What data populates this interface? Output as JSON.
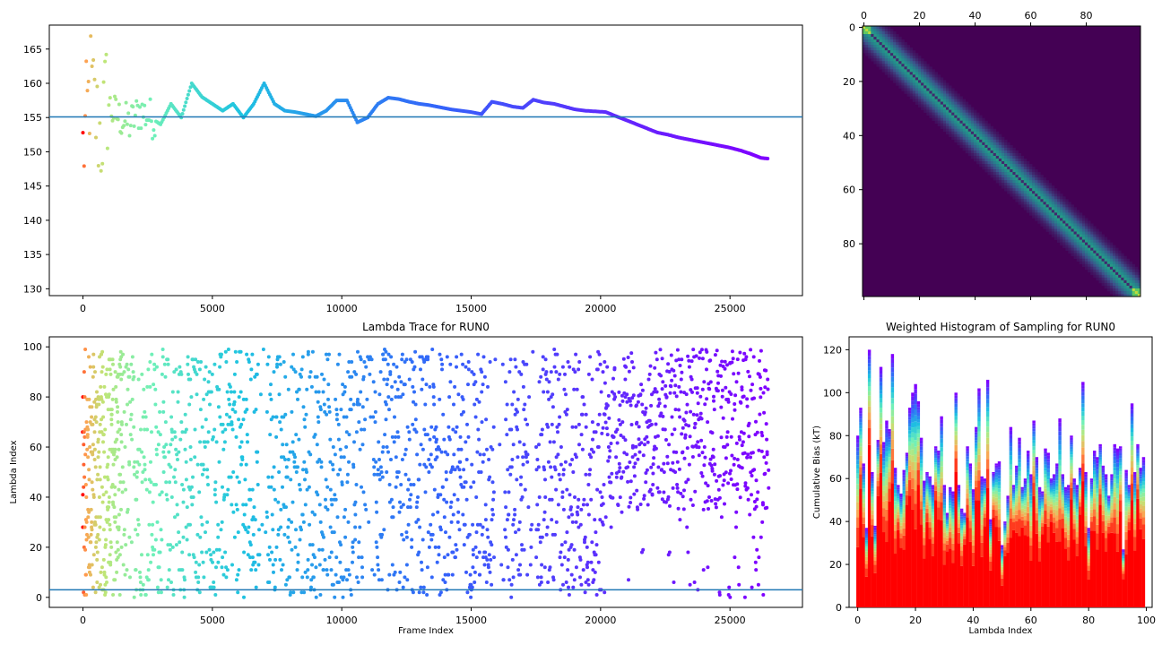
{
  "chart_data": [
    {
      "id": "top-left",
      "type": "scatter",
      "title": "",
      "xlabel": "",
      "ylabel": "",
      "xlim": [
        -1300,
        27800
      ],
      "ylim": [
        129,
        168.5
      ],
      "xticks": [
        0,
        5000,
        10000,
        15000,
        20000,
        25000
      ],
      "yticks": [
        130,
        135,
        140,
        145,
        150,
        155,
        160,
        165
      ],
      "hline": 155.1,
      "hline_color": "#1f77b4",
      "colormap": "rainbow",
      "series": [
        {
          "x": [
            0,
            300,
            500,
            700,
            900,
            1100,
            1400,
            1800,
            2200,
            2600,
            3000,
            3400,
            3800,
            4200,
            4600,
            5000,
            5400,
            5800,
            6200,
            6600,
            7000,
            7400,
            7800,
            8200,
            8600,
            9000,
            9400,
            9800,
            10200,
            10600,
            11000,
            11400,
            11800,
            12200,
            12600,
            13000,
            13400,
            13800,
            14200,
            14600,
            15000,
            15400,
            15800,
            16200,
            16600,
            17000,
            17400,
            17800,
            18200,
            18600,
            19000,
            19400,
            19800,
            20200,
            20600,
            21000,
            21400,
            21800,
            22200,
            22600,
            23000,
            23400,
            23800,
            24200,
            24600,
            25000,
            25400,
            25800,
            26200,
            26500
          ],
          "y": [
            150,
            160,
            155,
            152,
            158,
            156,
            155,
            154,
            156,
            155,
            154,
            157,
            155,
            160,
            158,
            157,
            156,
            157,
            155,
            157,
            160,
            157,
            156,
            155.8,
            155.5,
            155.2,
            156,
            157.5,
            157.5,
            154.3,
            155,
            157,
            157.9,
            157.7,
            157.3,
            157,
            156.8,
            156.5,
            156.2,
            156,
            155.8,
            155.5,
            157.3,
            157,
            156.6,
            156.4,
            157.6,
            157.2,
            157,
            156.6,
            156.2,
            156,
            155.9,
            155.8,
            155.2,
            154.6,
            154,
            153.4,
            152.8,
            152.5,
            152.1,
            151.8,
            151.5,
            151.2,
            150.9,
            150.6,
            150.2,
            149.7,
            149.1,
            149
          ]
        }
      ]
    },
    {
      "id": "top-right",
      "type": "heatmap",
      "title": "",
      "xlabel": "",
      "ylabel": "",
      "size": 100,
      "xticks": [
        0,
        20,
        40,
        60,
        80
      ],
      "yticks": [
        0,
        20,
        40,
        60,
        80
      ],
      "xlim": [
        -0.5,
        99.5
      ],
      "ylim": [
        99.5,
        -0.5
      ],
      "colormap": "viridis",
      "band_width": 4,
      "diagonal": "dark"
    },
    {
      "id": "bottom-left",
      "type": "scatter",
      "title": "Lambda Trace for RUN0",
      "xlabel": "Frame Index",
      "ylabel": "Lambda Index",
      "xlim": [
        -1300,
        27800
      ],
      "ylim": [
        -4,
        104
      ],
      "xticks": [
        0,
        5000,
        10000,
        15000,
        20000,
        25000
      ],
      "yticks": [
        0,
        20,
        40,
        60,
        80,
        100
      ],
      "hline": 3,
      "hline_color": "#1f77b4",
      "colormap": "rainbow",
      "x_range": [
        0,
        26500
      ],
      "y_range": [
        0,
        99
      ]
    },
    {
      "id": "bottom-right",
      "type": "bar",
      "title": "Weighted Histogram of Sampling for RUN0",
      "xlabel": "Lambda Index",
      "ylabel": "Cumulative Bias (kT)",
      "xlim": [
        -3,
        102
      ],
      "ylim": [
        0,
        126
      ],
      "xticks": [
        0,
        20,
        40,
        60,
        80,
        100
      ],
      "yticks": [
        0,
        20,
        40,
        60,
        80,
        100,
        120
      ],
      "colormap": "rainbow",
      "categories": [
        0,
        1,
        2,
        3,
        4,
        5,
        6,
        7,
        8,
        9,
        10,
        11,
        12,
        13,
        14,
        15,
        16,
        17,
        18,
        19,
        20,
        21,
        22,
        23,
        24,
        25,
        26,
        27,
        28,
        29,
        30,
        31,
        32,
        33,
        34,
        35,
        36,
        37,
        38,
        39,
        40,
        41,
        42,
        43,
        44,
        45,
        46,
        47,
        48,
        49,
        50,
        51,
        52,
        53,
        54,
        55,
        56,
        57,
        58,
        59,
        60,
        61,
        62,
        63,
        64,
        65,
        66,
        67,
        68,
        69,
        70,
        71,
        72,
        73,
        74,
        75,
        76,
        77,
        78,
        79,
        80,
        81,
        82,
        83,
        84,
        85,
        86,
        87,
        88,
        89,
        90,
        91,
        92,
        93,
        94,
        95,
        96,
        97,
        98,
        99
      ],
      "values": [
        80,
        93,
        67,
        37,
        120,
        63,
        38,
        78,
        112,
        77,
        87,
        83,
        118,
        65,
        57,
        53,
        64,
        72,
        93,
        100,
        104,
        96,
        79,
        59,
        63,
        61,
        57,
        75,
        73,
        89,
        57,
        44,
        56,
        54,
        100,
        57,
        46,
        44,
        75,
        67,
        55,
        84,
        102,
        61,
        60,
        106,
        41,
        63,
        67,
        68,
        29,
        40,
        52,
        84,
        57,
        66,
        79,
        56,
        60,
        73,
        62,
        87,
        70,
        56,
        54,
        74,
        72,
        60,
        62,
        67,
        88,
        62,
        56,
        57,
        80,
        60,
        57,
        65,
        105,
        63,
        37,
        60,
        73,
        70,
        76,
        66,
        62,
        52,
        62,
        76,
        74,
        75,
        27,
        64,
        57,
        95,
        63,
        76,
        65,
        70
      ]
    }
  ]
}
